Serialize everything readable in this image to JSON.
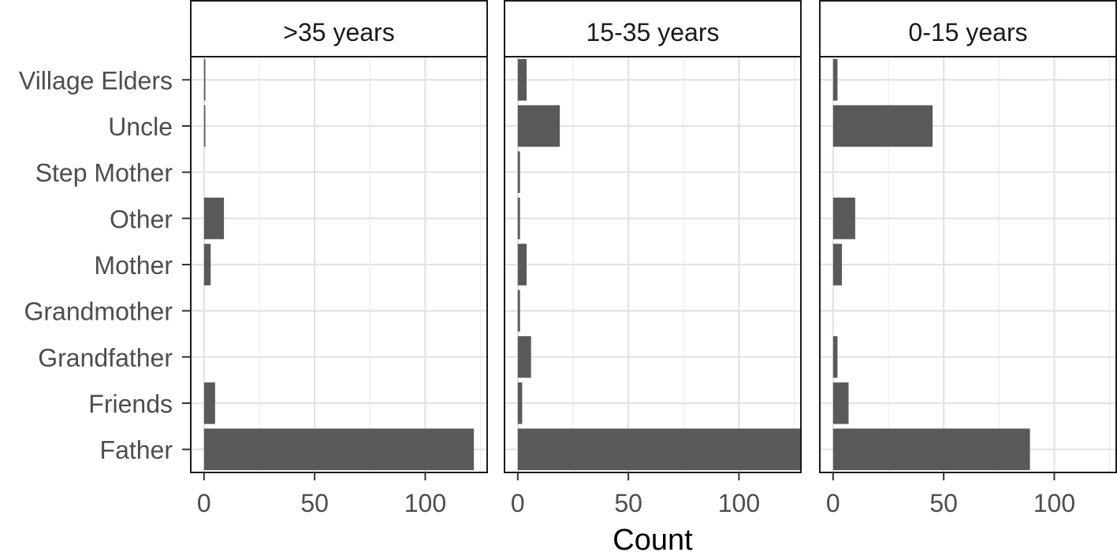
{
  "chart_data": {
    "type": "bar",
    "orientation": "horizontal",
    "categories": [
      "Village Elders",
      "Uncle",
      "Step Mother",
      "Other",
      "Mother",
      "Grandmother",
      "Grandfather",
      "Friends",
      "Father"
    ],
    "xlabel": "Count",
    "xlim": [
      -6,
      128
    ],
    "xticks": [
      0,
      50,
      100
    ],
    "tick_labels": [
      "0",
      "50",
      "100"
    ],
    "grid": true,
    "bar_color": "#595959",
    "panels": [
      {
        "name": ">35 years",
        "values": {
          "Village Elders": 0.6,
          "Uncle": 0.6,
          "Step Mother": 0,
          "Other": 9,
          "Mother": 3,
          "Grandmother": 0,
          "Grandfather": 0,
          "Friends": 5,
          "Father": 122
        }
      },
      {
        "name": "15-35 years",
        "values": {
          "Village Elders": 4,
          "Uncle": 19,
          "Step Mother": 1,
          "Other": 1,
          "Mother": 4,
          "Grandmother": 1,
          "Grandfather": 6,
          "Friends": 2,
          "Father": 128
        }
      },
      {
        "name": "0-15 years",
        "values": {
          "Village Elders": 2,
          "Uncle": 45,
          "Step Mother": 0,
          "Other": 10,
          "Mother": 4,
          "Grandmother": 0,
          "Grandfather": 2,
          "Friends": 7,
          "Father": 89
        }
      }
    ]
  }
}
